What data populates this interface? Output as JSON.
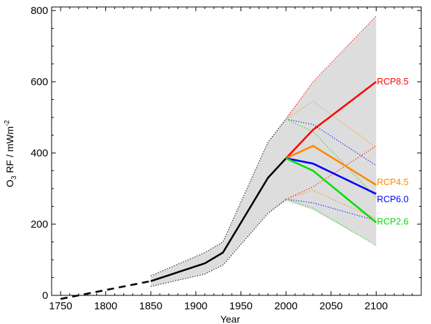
{
  "chart_data": {
    "type": "line",
    "title": "",
    "xlabel": "Year",
    "ylabel_main": "O",
    "ylabel_sub": "3",
    "ylabel_rest": " RF / mWm",
    "ylabel_sup": "-2",
    "xlim": [
      1740,
      2150
    ],
    "ylim": [
      0,
      810
    ],
    "xticks": [
      1750,
      1800,
      1850,
      1900,
      1950,
      2000,
      2050,
      2100
    ],
    "yticks": [
      0,
      200,
      400,
      600,
      800
    ],
    "grid": false,
    "colors": {
      "historical": "#000000",
      "band": "#dddddd",
      "rcp85": "#ff0000",
      "rcp45": "#ff8800",
      "rcp60": "#0000ff",
      "rcp26": "#00dd00"
    },
    "uncertainty_band": {
      "x": [
        1850,
        1910,
        1930,
        1980,
        2000,
        2030,
        2100
      ],
      "upper": [
        55,
        120,
        150,
        430,
        500,
        600,
        785
      ],
      "lower": [
        25,
        60,
        85,
        230,
        265,
        240,
        140
      ]
    },
    "historical_dashed": {
      "x": [
        1750,
        1850
      ],
      "y": [
        -10,
        40
      ]
    },
    "historical": {
      "x": [
        1850,
        1910,
        1930,
        1980,
        2000
      ],
      "y": [
        40,
        90,
        120,
        330,
        385
      ],
      "upper": [
        55,
        120,
        150,
        430,
        495
      ],
      "lower": [
        25,
        60,
        85,
        230,
        270
      ]
    },
    "series": [
      {
        "name": "RCP8.5",
        "color": "#ff0000",
        "x": [
          2000,
          2030,
          2100
        ],
        "y": [
          385,
          465,
          600
        ],
        "upper": [
          495,
          600,
          785
        ],
        "lower": [
          270,
          305,
          420
        ]
      },
      {
        "name": "RCP4.5",
        "color": "#ff8800",
        "x": [
          2000,
          2030,
          2100
        ],
        "y": [
          385,
          420,
          310
        ],
        "upper": [
          495,
          545,
          415
        ],
        "lower": [
          270,
          295,
          215
        ]
      },
      {
        "name": "RCP6.0",
        "color": "#0000ff",
        "x": [
          2000,
          2030,
          2100
        ],
        "y": [
          385,
          370,
          285
        ],
        "upper": [
          495,
          480,
          365
        ],
        "lower": [
          270,
          260,
          210
        ]
      },
      {
        "name": "RCP2.6",
        "color": "#00dd00",
        "x": [
          2000,
          2030,
          2100
        ],
        "y": [
          385,
          350,
          205
        ],
        "upper": [
          495,
          460,
          275
        ],
        "lower": [
          270,
          245,
          140
        ]
      }
    ]
  }
}
